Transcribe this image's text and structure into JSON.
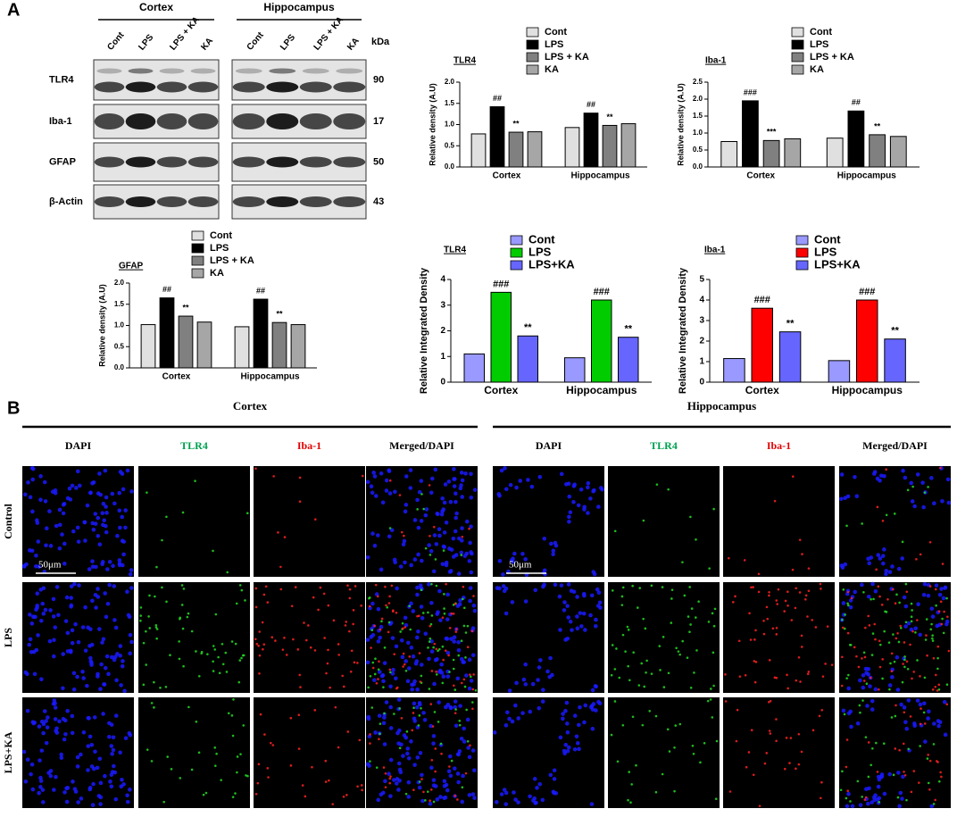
{
  "panel_labels": [
    "A",
    "B"
  ],
  "blot": {
    "groups": [
      "Cortex",
      "Hippocampus"
    ],
    "lanes": [
      "Cont",
      "LPS",
      "LPS + KA",
      "KA"
    ],
    "unit": "kDa",
    "rows": [
      {
        "protein": "TLR4",
        "kda": 90
      },
      {
        "protein": "Iba-1",
        "kda": 17
      },
      {
        "protein": "GFAP",
        "kda": 50
      },
      {
        "protein": "β-Actin",
        "kda": 43
      }
    ]
  },
  "chart_data": [
    {
      "type": "bar",
      "title": "TLR4",
      "y_label": "Relative density (A.U)",
      "categories": [
        "Cortex",
        "Hippocampus"
      ],
      "ylim": [
        0,
        2.0
      ],
      "yticks": [
        {
          "value": 0,
          "label": "0.0"
        },
        {
          "value": 0.5,
          "label": "0.5"
        },
        {
          "value": 1.0,
          "label": "1.0"
        },
        {
          "value": 1.5,
          "label": "1.5"
        },
        {
          "value": 2.0,
          "label": "2.0"
        }
      ],
      "series": [
        {
          "name": "Cont",
          "color": "#e0e0e0",
          "values": [
            0.78,
            0.93
          ],
          "annotations": [
            null,
            null
          ]
        },
        {
          "name": "LPS",
          "color": "#000000",
          "values": [
            1.42,
            1.27
          ],
          "annotations": [
            "##",
            "##"
          ]
        },
        {
          "name": "LPS + KA",
          "color": "#808080",
          "values": [
            0.82,
            0.98
          ],
          "annotations": [
            "**",
            "**"
          ]
        },
        {
          "name": "KA",
          "color": "#a6a6a6",
          "values": [
            0.83,
            1.02
          ],
          "annotations": [
            null,
            null
          ]
        }
      ]
    },
    {
      "type": "bar",
      "title": "Iba-1",
      "y_label": "Relative density (A.U)",
      "categories": [
        "Cortex",
        "Hippocampus"
      ],
      "ylim": [
        0,
        2.5
      ],
      "yticks": [
        {
          "value": 0,
          "label": "0.0"
        },
        {
          "value": 0.5,
          "label": "0.5"
        },
        {
          "value": 1.0,
          "label": "1.0"
        },
        {
          "value": 1.5,
          "label": "1.5"
        },
        {
          "value": 2.0,
          "label": "2.0"
        },
        {
          "value": 2.5,
          "label": "2.5"
        }
      ],
      "series": [
        {
          "name": "Cont",
          "color": "#e0e0e0",
          "values": [
            0.75,
            0.85
          ],
          "annotations": [
            null,
            null
          ]
        },
        {
          "name": "LPS",
          "color": "#000000",
          "values": [
            1.95,
            1.65
          ],
          "annotations": [
            "###",
            "##"
          ]
        },
        {
          "name": "LPS + KA",
          "color": "#808080",
          "values": [
            0.78,
            0.95
          ],
          "annotations": [
            "***",
            "**"
          ]
        },
        {
          "name": "KA",
          "color": "#a6a6a6",
          "values": [
            0.83,
            0.9
          ],
          "annotations": [
            null,
            null
          ]
        }
      ]
    },
    {
      "type": "bar",
      "title": "GFAP",
      "y_label": "Relative density (A.U)",
      "categories": [
        "Cortex",
        "Hippocampus"
      ],
      "ylim": [
        0,
        2.0
      ],
      "yticks": [
        {
          "value": 0,
          "label": "0.0"
        },
        {
          "value": 0.5,
          "label": "0.5"
        },
        {
          "value": 1.0,
          "label": "1.0"
        },
        {
          "value": 1.5,
          "label": "1.5"
        },
        {
          "value": 2.0,
          "label": "2.0"
        }
      ],
      "series": [
        {
          "name": "Cont",
          "color": "#e0e0e0",
          "values": [
            1.02,
            0.97
          ],
          "annotations": [
            null,
            null
          ]
        },
        {
          "name": "LPS",
          "color": "#000000",
          "values": [
            1.65,
            1.62
          ],
          "annotations": [
            "##",
            "##"
          ]
        },
        {
          "name": "LPS + KA",
          "color": "#808080",
          "values": [
            1.22,
            1.07
          ],
          "annotations": [
            "**",
            "**"
          ]
        },
        {
          "name": "KA",
          "color": "#a6a6a6",
          "values": [
            1.08,
            1.02
          ],
          "annotations": [
            null,
            null
          ]
        }
      ]
    },
    {
      "type": "bar",
      "title": "TLR4",
      "y_label": "Relative Integrated Density",
      "categories": [
        "Cortex",
        "Hippocampus"
      ],
      "ylim": [
        0,
        4
      ],
      "yticks": [
        0,
        1,
        2,
        3,
        4
      ],
      "series": [
        {
          "name": "Cont",
          "color": "#9999ff",
          "values": [
            1.1,
            0.95
          ],
          "annotations": [
            null,
            null
          ]
        },
        {
          "name": "LPS",
          "color": "#00cc00",
          "values": [
            3.5,
            3.2
          ],
          "annotations": [
            "###",
            "###"
          ]
        },
        {
          "name": "LPS+KA",
          "color": "#6666ff",
          "values": [
            1.8,
            1.75
          ],
          "annotations": [
            "**",
            "**"
          ]
        }
      ]
    },
    {
      "type": "bar",
      "title": "Iba-1",
      "y_label": "Relative Integrated Density",
      "categories": [
        "Cortex",
        "Hippocampus"
      ],
      "ylim": [
        0,
        5
      ],
      "yticks": [
        0,
        1,
        2,
        3,
        4,
        5
      ],
      "series": [
        {
          "name": "Cont",
          "color": "#9999ff",
          "values": [
            1.15,
            1.05
          ],
          "annotations": [
            null,
            null
          ]
        },
        {
          "name": "LPS",
          "color": "#ff0000",
          "values": [
            3.6,
            4.0
          ],
          "annotations": [
            "###",
            "###"
          ]
        },
        {
          "name": "LPS+KA",
          "color": "#6666ff",
          "values": [
            2.45,
            2.1
          ],
          "annotations": [
            "**",
            "**"
          ]
        }
      ]
    }
  ],
  "microscopy": {
    "regions": [
      "Cortex",
      "Hippocampus"
    ],
    "channels": [
      "DAPI",
      "TLR4",
      "Iba-1",
      "Merged/DAPI"
    ],
    "groups": [
      "Control",
      "LPS",
      "LPS+KA"
    ],
    "scale_bar": "50μm"
  }
}
